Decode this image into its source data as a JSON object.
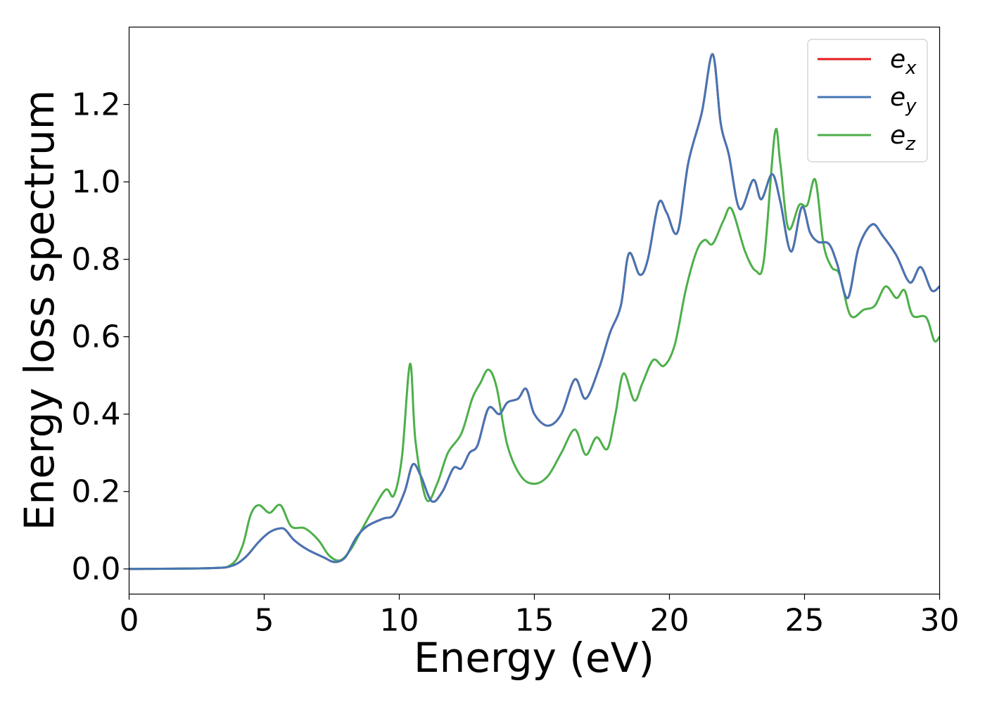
{
  "chart_data": {
    "type": "line",
    "xlabel": "Energy (eV)",
    "ylabel": "Energy loss spectrum",
    "xlim": [
      0,
      30
    ],
    "ylim": [
      -0.065,
      1.4
    ],
    "xticks": [
      0,
      5,
      10,
      15,
      20,
      25,
      30
    ],
    "xtick_labels": [
      "0",
      "5",
      "10",
      "15",
      "20",
      "25",
      "30"
    ],
    "yticks": [
      0.0,
      0.2,
      0.4,
      0.6,
      0.8,
      1.0,
      1.2
    ],
    "ytick_labels": [
      "0.0",
      "0.2",
      "0.4",
      "0.6",
      "0.8",
      "1.0",
      "1.2"
    ],
    "grid": false,
    "legend_position": "top-right",
    "series": [
      {
        "name": "e",
        "subscript": "x",
        "color": "#e41a1c",
        "points": [
          [
            0,
            0
          ],
          [
            3,
            0.002
          ],
          [
            3.8,
            0.008
          ],
          [
            4.3,
            0.03
          ],
          [
            4.8,
            0.07
          ],
          [
            5.2,
            0.095
          ],
          [
            5.6,
            0.105
          ],
          [
            5.8,
            0.1
          ],
          [
            6.1,
            0.075
          ],
          [
            6.6,
            0.05
          ],
          [
            7.2,
            0.03
          ],
          [
            7.6,
            0.018
          ],
          [
            8.0,
            0.03
          ],
          [
            8.4,
            0.08
          ],
          [
            8.8,
            0.11
          ],
          [
            9.4,
            0.13
          ],
          [
            9.8,
            0.14
          ],
          [
            10.2,
            0.2
          ],
          [
            10.5,
            0.27
          ],
          [
            10.8,
            0.24
          ],
          [
            11.2,
            0.175
          ],
          [
            11.6,
            0.2
          ],
          [
            12.0,
            0.26
          ],
          [
            12.3,
            0.26
          ],
          [
            12.6,
            0.3
          ],
          [
            12.9,
            0.32
          ],
          [
            13.3,
            0.415
          ],
          [
            13.7,
            0.4
          ],
          [
            14.0,
            0.43
          ],
          [
            14.4,
            0.44
          ],
          [
            14.7,
            0.465
          ],
          [
            15.0,
            0.4
          ],
          [
            15.5,
            0.37
          ],
          [
            16.0,
            0.4
          ],
          [
            16.5,
            0.49
          ],
          [
            16.9,
            0.44
          ],
          [
            17.4,
            0.52
          ],
          [
            17.8,
            0.61
          ],
          [
            18.2,
            0.68
          ],
          [
            18.5,
            0.815
          ],
          [
            18.9,
            0.76
          ],
          [
            19.2,
            0.8
          ],
          [
            19.6,
            0.945
          ],
          [
            19.9,
            0.92
          ],
          [
            20.3,
            0.87
          ],
          [
            20.7,
            1.05
          ],
          [
            21.2,
            1.18
          ],
          [
            21.6,
            1.33
          ],
          [
            21.9,
            1.15
          ],
          [
            22.2,
            1.07
          ],
          [
            22.6,
            0.93
          ],
          [
            23.1,
            1.005
          ],
          [
            23.4,
            0.955
          ],
          [
            23.8,
            1.02
          ],
          [
            24.1,
            0.95
          ],
          [
            24.5,
            0.82
          ],
          [
            24.9,
            0.935
          ],
          [
            25.2,
            0.87
          ],
          [
            25.5,
            0.845
          ],
          [
            25.9,
            0.84
          ],
          [
            26.2,
            0.79
          ],
          [
            26.6,
            0.7
          ],
          [
            27.0,
            0.83
          ],
          [
            27.5,
            0.89
          ],
          [
            27.9,
            0.86
          ],
          [
            28.4,
            0.81
          ],
          [
            28.9,
            0.74
          ],
          [
            29.3,
            0.78
          ],
          [
            29.7,
            0.72
          ],
          [
            30,
            0.73
          ]
        ]
      },
      {
        "name": "e",
        "subscript": "y",
        "color": "#4575b4",
        "points": [
          [
            0,
            0
          ],
          [
            3,
            0.002
          ],
          [
            3.8,
            0.008
          ],
          [
            4.3,
            0.03
          ],
          [
            4.8,
            0.07
          ],
          [
            5.2,
            0.095
          ],
          [
            5.6,
            0.105
          ],
          [
            5.8,
            0.1
          ],
          [
            6.1,
            0.075
          ],
          [
            6.6,
            0.05
          ],
          [
            7.2,
            0.03
          ],
          [
            7.6,
            0.018
          ],
          [
            8.0,
            0.03
          ],
          [
            8.4,
            0.08
          ],
          [
            8.8,
            0.11
          ],
          [
            9.4,
            0.13
          ],
          [
            9.8,
            0.14
          ],
          [
            10.2,
            0.2
          ],
          [
            10.5,
            0.27
          ],
          [
            10.8,
            0.24
          ],
          [
            11.2,
            0.175
          ],
          [
            11.6,
            0.2
          ],
          [
            12.0,
            0.26
          ],
          [
            12.3,
            0.26
          ],
          [
            12.6,
            0.3
          ],
          [
            12.9,
            0.32
          ],
          [
            13.3,
            0.415
          ],
          [
            13.7,
            0.4
          ],
          [
            14.0,
            0.43
          ],
          [
            14.4,
            0.44
          ],
          [
            14.7,
            0.465
          ],
          [
            15.0,
            0.4
          ],
          [
            15.5,
            0.37
          ],
          [
            16.0,
            0.4
          ],
          [
            16.5,
            0.49
          ],
          [
            16.9,
            0.44
          ],
          [
            17.4,
            0.52
          ],
          [
            17.8,
            0.61
          ],
          [
            18.2,
            0.68
          ],
          [
            18.5,
            0.815
          ],
          [
            18.9,
            0.76
          ],
          [
            19.2,
            0.8
          ],
          [
            19.6,
            0.945
          ],
          [
            19.9,
            0.92
          ],
          [
            20.3,
            0.87
          ],
          [
            20.7,
            1.05
          ],
          [
            21.2,
            1.18
          ],
          [
            21.6,
            1.33
          ],
          [
            21.9,
            1.15
          ],
          [
            22.2,
            1.07
          ],
          [
            22.6,
            0.93
          ],
          [
            23.1,
            1.005
          ],
          [
            23.4,
            0.955
          ],
          [
            23.8,
            1.02
          ],
          [
            24.1,
            0.95
          ],
          [
            24.5,
            0.82
          ],
          [
            24.9,
            0.935
          ],
          [
            25.2,
            0.87
          ],
          [
            25.5,
            0.845
          ],
          [
            25.9,
            0.84
          ],
          [
            26.2,
            0.79
          ],
          [
            26.6,
            0.7
          ],
          [
            27.0,
            0.83
          ],
          [
            27.5,
            0.89
          ],
          [
            27.9,
            0.86
          ],
          [
            28.4,
            0.81
          ],
          [
            28.9,
            0.74
          ],
          [
            29.3,
            0.78
          ],
          [
            29.7,
            0.72
          ],
          [
            30,
            0.73
          ]
        ]
      },
      {
        "name": "e",
        "subscript": "z",
        "color": "#4daf4a",
        "points": [
          [
            0,
            0
          ],
          [
            3,
            0.002
          ],
          [
            3.8,
            0.012
          ],
          [
            4.2,
            0.06
          ],
          [
            4.5,
            0.14
          ],
          [
            4.8,
            0.165
          ],
          [
            5.2,
            0.145
          ],
          [
            5.6,
            0.165
          ],
          [
            6.0,
            0.11
          ],
          [
            6.5,
            0.105
          ],
          [
            7.0,
            0.075
          ],
          [
            7.4,
            0.035
          ],
          [
            7.8,
            0.022
          ],
          [
            8.2,
            0.05
          ],
          [
            8.6,
            0.1
          ],
          [
            9.0,
            0.15
          ],
          [
            9.5,
            0.205
          ],
          [
            9.8,
            0.19
          ],
          [
            10.1,
            0.29
          ],
          [
            10.4,
            0.53
          ],
          [
            10.6,
            0.33
          ],
          [
            11.0,
            0.18
          ],
          [
            11.4,
            0.22
          ],
          [
            11.8,
            0.3
          ],
          [
            12.3,
            0.35
          ],
          [
            12.7,
            0.44
          ],
          [
            13.0,
            0.48
          ],
          [
            13.3,
            0.515
          ],
          [
            13.6,
            0.47
          ],
          [
            14.0,
            0.32
          ],
          [
            14.5,
            0.24
          ],
          [
            15.0,
            0.22
          ],
          [
            15.5,
            0.24
          ],
          [
            16.0,
            0.3
          ],
          [
            16.5,
            0.36
          ],
          [
            16.9,
            0.295
          ],
          [
            17.3,
            0.34
          ],
          [
            17.7,
            0.31
          ],
          [
            18.0,
            0.4
          ],
          [
            18.3,
            0.505
          ],
          [
            18.7,
            0.435
          ],
          [
            19.0,
            0.48
          ],
          [
            19.4,
            0.54
          ],
          [
            19.8,
            0.525
          ],
          [
            20.2,
            0.58
          ],
          [
            20.6,
            0.72
          ],
          [
            21.0,
            0.82
          ],
          [
            21.3,
            0.85
          ],
          [
            21.6,
            0.84
          ],
          [
            22.0,
            0.9
          ],
          [
            22.3,
            0.93
          ],
          [
            22.8,
            0.82
          ],
          [
            23.2,
            0.77
          ],
          [
            23.5,
            0.8
          ],
          [
            23.9,
            1.125
          ],
          [
            24.1,
            1.05
          ],
          [
            24.4,
            0.88
          ],
          [
            24.8,
            0.94
          ],
          [
            25.1,
            0.94
          ],
          [
            25.4,
            1.005
          ],
          [
            25.7,
            0.84
          ],
          [
            26.0,
            0.78
          ],
          [
            26.3,
            0.76
          ],
          [
            26.7,
            0.655
          ],
          [
            27.2,
            0.67
          ],
          [
            27.6,
            0.68
          ],
          [
            28.0,
            0.73
          ],
          [
            28.4,
            0.7
          ],
          [
            28.7,
            0.72
          ],
          [
            29.0,
            0.655
          ],
          [
            29.5,
            0.65
          ],
          [
            29.8,
            0.59
          ],
          [
            30,
            0.6
          ]
        ]
      }
    ]
  }
}
